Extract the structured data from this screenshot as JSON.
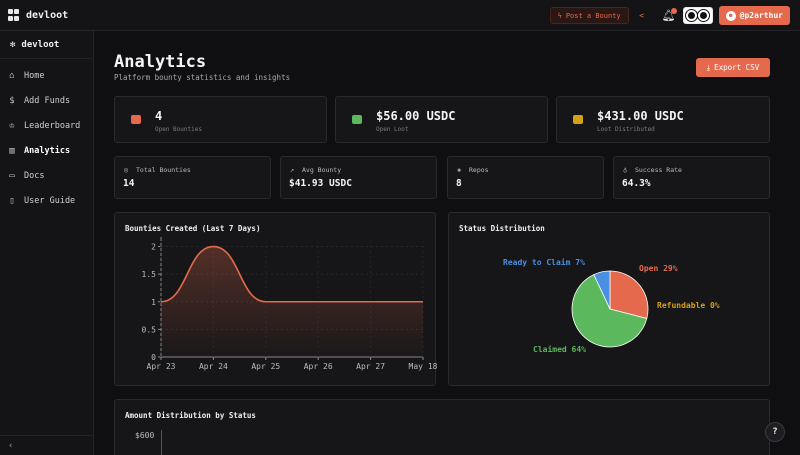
{
  "topbar": {
    "brand": "devloot",
    "post_bounty": "Post a Bounty",
    "github_user": "@p2arthur"
  },
  "sidebar": {
    "brand": "devloot",
    "items": [
      {
        "label": "Home",
        "icon": "home-icon"
      },
      {
        "label": "Add Funds",
        "icon": "dollar-icon"
      },
      {
        "label": "Leaderboard",
        "icon": "crown-icon"
      },
      {
        "label": "Analytics",
        "icon": "bar-chart-icon"
      },
      {
        "label": "Docs",
        "icon": "doc-icon"
      },
      {
        "label": "User Guide",
        "icon": "book-icon"
      }
    ],
    "active": "Analytics",
    "collapse": "‹"
  },
  "page": {
    "title": "Analytics",
    "subtitle": "Platform bounty statistics and insights",
    "export_label": "Export CSV"
  },
  "stats_big": [
    {
      "value": "4",
      "label": "Open Bounties",
      "color": "#e56a4d"
    },
    {
      "value": "$56.00 USDC",
      "label": "Open Loot",
      "color": "#5cb85c"
    },
    {
      "value": "$431.00 USDC",
      "label": "Loot Distributed",
      "color": "#d4a017"
    }
  ],
  "stats_small": [
    {
      "label": "Total Bounties",
      "value": "14",
      "icon": "target-icon"
    },
    {
      "label": "Avg Bounty",
      "value": "$41.93 USDC",
      "icon": "trend-up-icon"
    },
    {
      "label": "Repos",
      "value": "8",
      "icon": "layers-icon"
    },
    {
      "label": "Success Rate",
      "value": "64.3%",
      "icon": "award-icon"
    }
  ],
  "panels": {
    "line_title": "Bounties Created (Last 7 Days)",
    "pie_title": "Status Distribution",
    "amount_title": "Amount Distribution by Status",
    "amount_axis_top": "$600"
  },
  "chart_data": [
    {
      "type": "line",
      "title": "Bounties Created (Last 7 Days)",
      "categories": [
        "Apr 23",
        "Apr 24",
        "Apr 25",
        "Apr 26",
        "Apr 27",
        "May 18"
      ],
      "values": [
        1,
        2,
        1,
        1,
        1,
        1
      ],
      "y_ticks": [
        "0",
        "0.5",
        "1",
        "1.5",
        "2"
      ],
      "ylim": [
        0,
        2.1
      ],
      "color": "#e56a4d"
    },
    {
      "type": "pie",
      "title": "Status Distribution",
      "slices": [
        {
          "label": "Open 29%",
          "value": 29,
          "color": "#e56a4d"
        },
        {
          "label": "Refundable 0%",
          "value": 0,
          "color": "#d4a017"
        },
        {
          "label": "Claimed 64%",
          "value": 64,
          "color": "#5cb85c"
        },
        {
          "label": "Ready to Claim 7%",
          "value": 7,
          "color": "#4a90e2"
        }
      ]
    }
  ],
  "help": "?"
}
